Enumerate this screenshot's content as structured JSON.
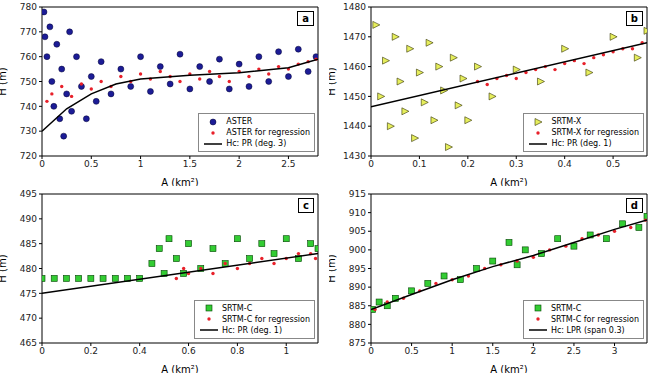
{
  "chart_data": [
    {
      "type": "scatter",
      "title": "a",
      "x_label": "A (km²)",
      "y_label": "H (m)",
      "grid": false,
      "legend": "lower right",
      "xlim": [
        0,
        2.8
      ],
      "xticks": [
        0,
        0.5,
        1,
        1.5,
        2,
        2.5
      ],
      "ylim": [
        720,
        780
      ],
      "yticks": [
        720,
        730,
        740,
        750,
        760,
        770,
        780
      ],
      "series": [
        {
          "name": "ASTER",
          "type": "scatter",
          "marker": "circle",
          "color": "#1c1c96",
          "x": [
            0.02,
            0.03,
            0.05,
            0.08,
            0.1,
            0.12,
            0.15,
            0.18,
            0.2,
            0.22,
            0.25,
            0.28,
            0.3,
            0.35,
            0.4,
            0.45,
            0.5,
            0.55,
            0.6,
            0.7,
            0.8,
            0.9,
            1.0,
            1.1,
            1.2,
            1.3,
            1.4,
            1.5,
            1.6,
            1.7,
            1.8,
            1.9,
            2.0,
            2.1,
            2.2,
            2.3,
            2.4,
            2.5,
            2.6,
            2.7,
            2.78
          ],
          "values": [
            778,
            768,
            760,
            772,
            750,
            740,
            765,
            735,
            755,
            728,
            745,
            770,
            738,
            760,
            748,
            735,
            752,
            742,
            758,
            745,
            755,
            748,
            760,
            746,
            756,
            749,
            761,
            747,
            756,
            750,
            759,
            747,
            757,
            748,
            760,
            750,
            762,
            752,
            763,
            754,
            760
          ]
        },
        {
          "name": "ASTER for regression",
          "type": "scatter",
          "marker": "dot",
          "color": "#e8202a",
          "x": [
            0.05,
            0.1,
            0.2,
            0.3,
            0.4,
            0.5,
            0.6,
            0.7,
            0.8,
            0.9,
            1.0,
            1.1,
            1.2,
            1.3,
            1.4,
            1.5,
            1.6,
            1.7,
            1.8,
            1.9,
            2.0,
            2.1,
            2.2,
            2.3,
            2.4,
            2.5,
            2.6,
            2.7,
            2.78
          ],
          "values": [
            742,
            745,
            748,
            744,
            749,
            747,
            750,
            748,
            752,
            750,
            753,
            751,
            754,
            752,
            750,
            753,
            751,
            754,
            752,
            750,
            754,
            752,
            755,
            753,
            756,
            755,
            757,
            758,
            759
          ]
        },
        {
          "name": "Hc: PR (deg. 3)",
          "type": "line",
          "line_style": "solid",
          "color": "#000000",
          "x": [
            0,
            0.25,
            0.5,
            0.75,
            1,
            1.5,
            2,
            2.5,
            2.8
          ],
          "values": [
            730,
            739,
            745,
            749,
            751,
            752.5,
            753.5,
            755.5,
            759
          ]
        }
      ]
    },
    {
      "type": "scatter",
      "title": "b",
      "x_label": "A (km²)",
      "y_label": "H (m)",
      "grid": false,
      "legend": "lower right",
      "xlim": [
        0,
        0.57
      ],
      "xticks": [
        0,
        0.1,
        0.2,
        0.3,
        0.4,
        0.5
      ],
      "ylim": [
        1430,
        1480
      ],
      "yticks": [
        1430,
        1440,
        1450,
        1460,
        1470,
        1480
      ],
      "series": [
        {
          "name": "SRTM-X",
          "type": "scatter",
          "marker": "triangle",
          "color": "#e6ee5c",
          "x": [
            0.01,
            0.02,
            0.03,
            0.04,
            0.05,
            0.06,
            0.07,
            0.08,
            0.09,
            0.1,
            0.11,
            0.12,
            0.13,
            0.14,
            0.15,
            0.16,
            0.17,
            0.18,
            0.19,
            0.2,
            0.22,
            0.25,
            0.3,
            0.35,
            0.4,
            0.45,
            0.5,
            0.55,
            0.57
          ],
          "values": [
            1474,
            1450,
            1462,
            1440,
            1470,
            1455,
            1445,
            1466,
            1436,
            1458,
            1448,
            1468,
            1442,
            1460,
            1452,
            1433,
            1463,
            1447,
            1456,
            1442,
            1460,
            1450,
            1459,
            1455,
            1466,
            1458,
            1470,
            1463,
            1472
          ]
        },
        {
          "name": "SRTM-X for regression",
          "type": "scatter",
          "marker": "dot",
          "color": "#e8202a",
          "x": [
            0.22,
            0.24,
            0.26,
            0.28,
            0.3,
            0.32,
            0.34,
            0.36,
            0.38,
            0.4,
            0.42,
            0.44,
            0.46,
            0.48,
            0.5,
            0.52,
            0.54,
            0.56
          ],
          "values": [
            1455,
            1454,
            1456,
            1457,
            1456,
            1458,
            1459,
            1460,
            1459,
            1461,
            1462,
            1461,
            1463,
            1464,
            1465,
            1466,
            1466,
            1468
          ]
        },
        {
          "name": "Hc: PR (deg. 1)",
          "type": "line",
          "line_style": "solid",
          "color": "#000000",
          "x": [
            0,
            0.57
          ],
          "values": [
            1446.5,
            1468
          ]
        }
      ]
    },
    {
      "type": "scatter",
      "title": "c",
      "x_label": "A (km²)",
      "y_label": "H (m)",
      "grid": false,
      "legend": "lower right",
      "xlim": [
        0,
        1.13
      ],
      "xticks": [
        0,
        0.2,
        0.4,
        0.6,
        0.8,
        1
      ],
      "ylim": [
        465,
        495
      ],
      "yticks": [
        465,
        470,
        475,
        480,
        485,
        490,
        495
      ],
      "series": [
        {
          "name": "SRTM-C",
          "type": "scatter",
          "marker": "square",
          "color": "#33cc33",
          "x": [
            0,
            0.05,
            0.1,
            0.15,
            0.2,
            0.25,
            0.3,
            0.35,
            0.4,
            0.45,
            0.48,
            0.5,
            0.52,
            0.55,
            0.58,
            0.6,
            0.65,
            0.7,
            0.75,
            0.8,
            0.85,
            0.9,
            0.95,
            1.0,
            1.05,
            1.1,
            1.13
          ],
          "values": [
            478,
            478,
            478,
            478,
            478,
            478,
            478,
            478,
            478,
            481,
            484,
            479,
            486,
            482,
            479,
            485,
            480,
            484,
            481,
            486,
            482,
            485,
            483,
            486,
            482,
            485,
            484
          ]
        },
        {
          "name": "SRTM-C for regression",
          "type": "scatter",
          "marker": "dot",
          "color": "#e8202a",
          "x": [
            0.55,
            0.58,
            0.6,
            0.65,
            0.7,
            0.75,
            0.8,
            0.85,
            0.9,
            0.95,
            1.0,
            1.05,
            1.1,
            1.12
          ],
          "values": [
            478,
            480,
            479,
            480,
            479,
            481,
            480,
            481,
            482,
            481,
            482,
            483,
            483,
            482
          ]
        },
        {
          "name": "Hc: PR (deg. 1)",
          "type": "line",
          "line_style": "solid",
          "color": "#000000",
          "x": [
            0,
            1.13
          ],
          "values": [
            475,
            483
          ]
        }
      ]
    },
    {
      "type": "scatter",
      "title": "d",
      "x_label": "A (km²)",
      "y_label": "H (m)",
      "grid": false,
      "legend": "lower right",
      "xlim": [
        0,
        3.4
      ],
      "xticks": [
        0,
        0.5,
        1,
        1.5,
        2,
        2.5,
        3
      ],
      "ylim": [
        875,
        915
      ],
      "yticks": [
        875,
        880,
        885,
        890,
        895,
        900,
        905,
        910,
        915
      ],
      "series": [
        {
          "name": "SRTM-C",
          "type": "scatter",
          "marker": "square",
          "color": "#33cc33",
          "x": [
            0.02,
            0.1,
            0.2,
            0.3,
            0.5,
            0.7,
            0.9,
            1.1,
            1.3,
            1.5,
            1.7,
            1.8,
            1.9,
            2.1,
            2.3,
            2.5,
            2.7,
            2.9,
            3.1,
            3.3,
            3.4
          ],
          "values": [
            884,
            886,
            885,
            887,
            889,
            891,
            893,
            892,
            895,
            897,
            902,
            896,
            900,
            899,
            903,
            901,
            904,
            903,
            907,
            906,
            909
          ]
        },
        {
          "name": "SRTM-C for regression",
          "type": "scatter",
          "marker": "dot",
          "color": "#e8202a",
          "x": [
            0.05,
            0.2,
            0.4,
            0.6,
            0.8,
            1.0,
            1.2,
            1.4,
            1.6,
            1.8,
            2.0,
            2.2,
            2.4,
            2.6,
            2.8,
            3.0,
            3.2,
            3.38
          ],
          "values": [
            884,
            886,
            887,
            889,
            891,
            892,
            893,
            895,
            896,
            897,
            898,
            900,
            901,
            903,
            904,
            905,
            906,
            908
          ]
        },
        {
          "name": "Hc: LPR (span 0.3)",
          "type": "line",
          "line_style": "solid",
          "color": "#000000",
          "x": [
            0,
            0.5,
            1,
            1.5,
            2,
            2.5,
            3,
            3.4
          ],
          "values": [
            884,
            888,
            892,
            895.5,
            898.5,
            902,
            905.5,
            908
          ]
        }
      ]
    }
  ]
}
